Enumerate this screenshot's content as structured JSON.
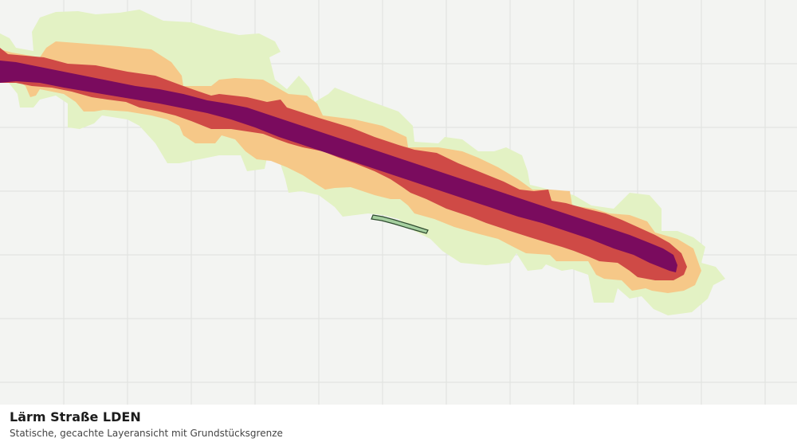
{
  "map": {
    "layers": [
      {
        "name": "noise-zone-lowest",
        "color": "#e3f2c4"
      },
      {
        "name": "noise-zone-low",
        "color": "#f6c888"
      },
      {
        "name": "noise-zone-high",
        "color": "#cf4a46"
      },
      {
        "name": "noise-zone-highest",
        "color": "#7a0b5e"
      }
    ],
    "parcel": {
      "fill": "#a5cf9f",
      "stroke": "#2e4b2e"
    },
    "grid_color": "#dfe1de",
    "background": "#f3f4f2"
  },
  "footer": {
    "title": "Lärm Straße LDEN",
    "subtitle": "Statische, gecachte Layeransicht mit Grundstücksgrenze"
  }
}
